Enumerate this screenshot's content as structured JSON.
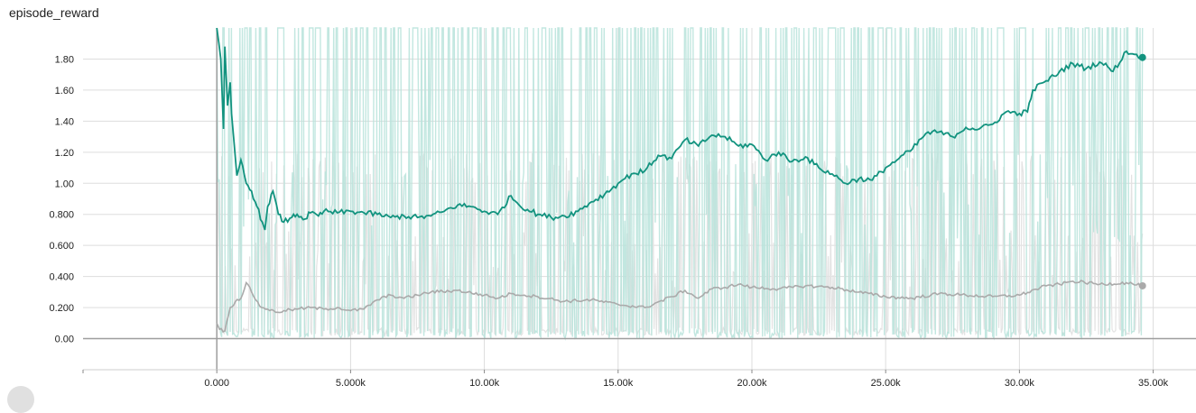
{
  "chart_data": {
    "type": "line",
    "title": "episode_reward",
    "xlabel": "",
    "ylabel": "",
    "xlim": [
      -5000,
      36600
    ],
    "ylim": [
      -0.2,
      2.0
    ],
    "grid": true,
    "x_ticks": [
      0,
      5000,
      10000,
      15000,
      20000,
      25000,
      30000,
      35000
    ],
    "x_tick_labels": [
      "0.000",
      "5.000k",
      "10.00k",
      "15.00k",
      "20.00k",
      "25.00k",
      "30.00k",
      "35.00k"
    ],
    "y_ticks": [
      0,
      0.2,
      0.4,
      0.6,
      0.8,
      1.0,
      1.2,
      1.4,
      1.6,
      1.8
    ],
    "y_tick_labels": [
      "0.00",
      "0.200",
      "0.400",
      "0.600",
      "0.800",
      "1.00",
      "1.20",
      "1.40",
      "1.60",
      "1.80"
    ],
    "colors": {
      "teal": "#12937f",
      "teal_raw": "#b7e3da",
      "gray": "#aaaaaa",
      "gray_raw": "#e3e3e3",
      "axis": "#9e9e9e",
      "grid": "#dddddd"
    },
    "series": [
      {
        "color": "#12937f",
        "smoothed": {
          "x": [
            0,
            150,
            250,
            300,
            400,
            500,
            550,
            650,
            750,
            900,
            1100,
            1300,
            1500,
            1700,
            1800,
            1900,
            2100,
            2300,
            2500,
            2800,
            3000,
            3300,
            3500,
            3800,
            4000,
            4500,
            5000,
            5500,
            6000,
            6500,
            7000,
            7500,
            8000,
            8500,
            9000,
            9500,
            10000,
            10500,
            11000,
            11300,
            12000,
            12500,
            13000,
            13500,
            14000,
            14500,
            15000,
            15500,
            16000,
            16500,
            17000,
            17500,
            18000,
            18500,
            19000,
            19500,
            20000,
            20500,
            21000,
            21500,
            22000,
            22500,
            23000,
            23500,
            24000,
            24500,
            25000,
            25500,
            26000,
            26500,
            27000,
            27500,
            28000,
            28500,
            29000,
            29500,
            30000,
            30300,
            30500,
            31000,
            31300,
            31500,
            32000,
            32500,
            33000,
            33300,
            33500,
            34000,
            34300,
            34600
          ],
          "y": [
            2.0,
            1.8,
            1.35,
            1.88,
            1.5,
            1.65,
            1.45,
            1.25,
            1.05,
            1.15,
            1.0,
            0.95,
            0.85,
            0.75,
            0.7,
            0.85,
            0.95,
            0.8,
            0.75,
            0.78,
            0.8,
            0.77,
            0.81,
            0.79,
            0.82,
            0.81,
            0.82,
            0.81,
            0.8,
            0.78,
            0.79,
            0.78,
            0.79,
            0.82,
            0.86,
            0.85,
            0.82,
            0.8,
            0.92,
            0.86,
            0.8,
            0.78,
            0.79,
            0.82,
            0.88,
            0.93,
            1.0,
            1.06,
            1.08,
            1.18,
            1.16,
            1.28,
            1.24,
            1.31,
            1.3,
            1.24,
            1.25,
            1.15,
            1.2,
            1.14,
            1.17,
            1.1,
            1.06,
            1.0,
            1.03,
            1.02,
            1.1,
            1.16,
            1.22,
            1.32,
            1.33,
            1.3,
            1.36,
            1.35,
            1.38,
            1.46,
            1.45,
            1.46,
            1.6,
            1.66,
            1.69,
            1.72,
            1.77,
            1.74,
            1.78,
            1.75,
            1.72,
            1.85,
            1.83,
            1.81
          ]
        }
      },
      {
        "color": "#aaaaaa",
        "smoothed": {
          "x": [
            0,
            100,
            300,
            500,
            700,
            900,
            1100,
            1300,
            1600,
            1900,
            2200,
            2500,
            3000,
            3500,
            4000,
            4500,
            5000,
            5500,
            6000,
            6500,
            7000,
            7500,
            8000,
            9000,
            10000,
            10500,
            11000,
            11500,
            12000,
            13000,
            14000,
            15000,
            16000,
            17000,
            17500,
            18000,
            18500,
            19000,
            19500,
            20000,
            21000,
            22000,
            23000,
            24000,
            25000,
            26000,
            27000,
            28000,
            29000,
            30000,
            31000,
            31500,
            32000,
            33000,
            34000,
            34600
          ],
          "y": [
            0.1,
            0.06,
            0.05,
            0.2,
            0.24,
            0.26,
            0.36,
            0.3,
            0.21,
            0.19,
            0.17,
            0.18,
            0.19,
            0.2,
            0.19,
            0.2,
            0.18,
            0.19,
            0.25,
            0.28,
            0.26,
            0.28,
            0.3,
            0.31,
            0.28,
            0.26,
            0.29,
            0.28,
            0.27,
            0.24,
            0.25,
            0.22,
            0.2,
            0.27,
            0.31,
            0.26,
            0.32,
            0.33,
            0.35,
            0.33,
            0.32,
            0.34,
            0.33,
            0.3,
            0.27,
            0.26,
            0.29,
            0.28,
            0.27,
            0.28,
            0.34,
            0.35,
            0.37,
            0.35,
            0.36,
            0.34
          ]
        }
      }
    ]
  }
}
